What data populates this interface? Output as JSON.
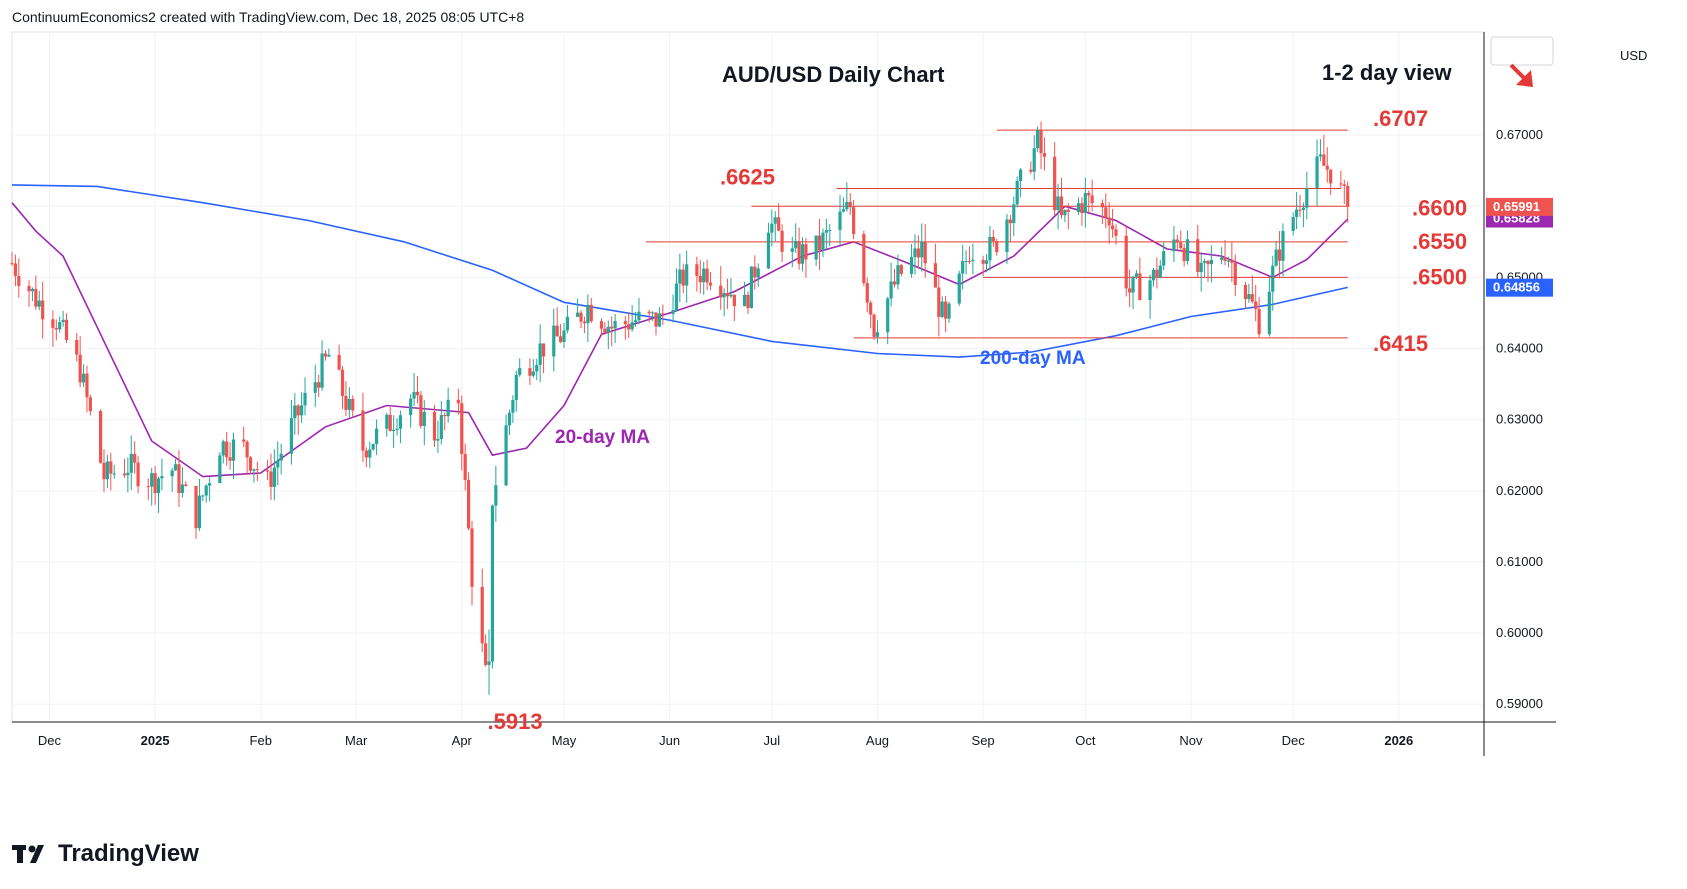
{
  "header": {
    "attribution": "ContinuumEconomics2 created with TradingView.com, Dec 18, 2025 08:05 UTC+8"
  },
  "footer": {
    "brand": "TradingView"
  },
  "colors": {
    "up": "#26a69a",
    "down": "#ef5350",
    "ma20": "#9c27b0",
    "ma200": "#2962ff",
    "level": "#e53935",
    "text": "#131722",
    "grid": "#f0f3fa"
  },
  "chart_data": {
    "type": "candlestick",
    "title": "AUD/USD Daily Chart",
    "subtitle": "1-2 day view",
    "currency": "USD",
    "ylim": [
      0.5875,
      0.6845
    ],
    "y_ticks": [
      0.59,
      0.6,
      0.61,
      0.62,
      0.63,
      0.64,
      0.65,
      0.66,
      0.67
    ],
    "y_tick_labels": [
      "0.59000",
      "0.60000",
      "0.61000",
      "0.62000",
      "0.63000",
      "0.64000",
      "0.65000",
      "0.66000",
      "0.67000"
    ],
    "x_ticks": [
      {
        "date": "2024-12-01",
        "label": "Dec"
      },
      {
        "date": "2025-01-01",
        "label": "2025"
      },
      {
        "date": "2025-02-01",
        "label": "Feb"
      },
      {
        "date": "2025-03-01",
        "label": "Mar"
      },
      {
        "date": "2025-04-01",
        "label": "Apr"
      },
      {
        "date": "2025-05-01",
        "label": "May"
      },
      {
        "date": "2025-06-01",
        "label": "Jun"
      },
      {
        "date": "2025-07-01",
        "label": "Jul"
      },
      {
        "date": "2025-08-01",
        "label": "Aug"
      },
      {
        "date": "2025-09-01",
        "label": "Sep"
      },
      {
        "date": "2025-10-01",
        "label": "Oct"
      },
      {
        "date": "2025-11-01",
        "label": "Nov"
      },
      {
        "date": "2025-12-01",
        "label": "Dec"
      },
      {
        "date": "2026-01-01",
        "label": "2026"
      }
    ],
    "x_range": [
      "2024-11-20",
      "2026-01-26"
    ],
    "price_path": [
      [
        "2024-11-20",
        0.652
      ],
      [
        "2024-11-27",
        0.647
      ],
      [
        "2024-12-03",
        0.644
      ],
      [
        "2024-12-10",
        0.637
      ],
      [
        "2024-12-17",
        0.622
      ],
      [
        "2024-12-24",
        0.6235
      ],
      [
        "2024-12-31",
        0.6215
      ],
      [
        "2025-01-06",
        0.623
      ],
      [
        "2025-01-13",
        0.6165
      ],
      [
        "2025-01-20",
        0.6265
      ],
      [
        "2025-01-27",
        0.626
      ],
      [
        "2025-02-03",
        0.621
      ],
      [
        "2025-02-10",
        0.629
      ],
      [
        "2025-02-17",
        0.6355
      ],
      [
        "2025-02-21",
        0.639
      ],
      [
        "2025-03-03",
        0.626
      ],
      [
        "2025-03-10",
        0.629
      ],
      [
        "2025-03-17",
        0.633
      ],
      [
        "2025-03-24",
        0.628
      ],
      [
        "2025-03-31",
        0.633
      ],
      [
        "2025-04-04",
        0.608
      ],
      [
        "2025-04-08",
        0.594
      ],
      [
        "2025-04-10",
        0.619
      ],
      [
        "2025-04-17",
        0.636
      ],
      [
        "2025-04-24",
        0.64
      ],
      [
        "2025-05-01",
        0.642
      ],
      [
        "2025-05-08",
        0.646
      ],
      [
        "2025-05-15",
        0.643
      ],
      [
        "2025-05-22",
        0.644
      ],
      [
        "2025-05-29",
        0.644
      ],
      [
        "2025-06-05",
        0.65
      ],
      [
        "2025-06-12",
        0.651
      ],
      [
        "2025-06-19",
        0.648
      ],
      [
        "2025-06-23",
        0.646
      ],
      [
        "2025-06-30",
        0.658
      ],
      [
        "2025-07-07",
        0.653
      ],
      [
        "2025-07-14",
        0.654
      ],
      [
        "2025-07-24",
        0.66
      ],
      [
        "2025-07-31",
        0.643
      ],
      [
        "2025-08-07",
        0.65
      ],
      [
        "2025-08-14",
        0.654
      ],
      [
        "2025-08-21",
        0.643
      ],
      [
        "2025-08-28",
        0.654
      ],
      [
        "2025-09-04",
        0.654
      ],
      [
        "2025-09-11",
        0.662
      ],
      [
        "2025-09-17",
        0.669
      ],
      [
        "2025-09-24",
        0.658
      ],
      [
        "2025-10-01",
        0.661
      ],
      [
        "2025-10-08",
        0.659
      ],
      [
        "2025-10-14",
        0.648
      ],
      [
        "2025-10-21",
        0.65
      ],
      [
        "2025-10-28",
        0.656
      ],
      [
        "2025-11-04",
        0.65
      ],
      [
        "2025-11-11",
        0.654
      ],
      [
        "2025-11-18",
        0.647
      ],
      [
        "2025-11-21",
        0.644
      ],
      [
        "2025-11-27",
        0.654
      ],
      [
        "2025-12-03",
        0.661
      ],
      [
        "2025-12-09",
        0.666
      ],
      [
        "2025-12-12",
        0.665
      ],
      [
        "2025-12-17",
        0.6599
      ]
    ],
    "ma20": {
      "name": "20-day MA",
      "points": [
        [
          "2024-11-20",
          0.6605
        ],
        [
          "2024-11-27",
          0.6565
        ],
        [
          "2024-12-05",
          0.653
        ],
        [
          "2024-12-15",
          0.643
        ],
        [
          "2024-12-31",
          0.627
        ],
        [
          "2025-01-15",
          0.622
        ],
        [
          "2025-02-01",
          0.6225
        ],
        [
          "2025-02-20",
          0.629
        ],
        [
          "2025-03-10",
          0.632
        ],
        [
          "2025-04-03",
          0.631
        ],
        [
          "2025-04-10",
          0.625
        ],
        [
          "2025-04-20",
          0.626
        ],
        [
          "2025-05-01",
          0.632
        ],
        [
          "2025-05-12",
          0.642
        ],
        [
          "2025-06-01",
          0.645
        ],
        [
          "2025-06-20",
          0.648
        ],
        [
          "2025-07-10",
          0.653
        ],
        [
          "2025-07-25",
          0.655
        ],
        [
          "2025-08-10",
          0.652
        ],
        [
          "2025-08-25",
          0.649
        ],
        [
          "2025-09-10",
          0.653
        ],
        [
          "2025-09-25",
          0.66
        ],
        [
          "2025-10-10",
          0.658
        ],
        [
          "2025-10-25",
          0.654
        ],
        [
          "2025-11-10",
          0.653
        ],
        [
          "2025-11-25",
          0.65
        ],
        [
          "2025-12-05",
          0.6525
        ],
        [
          "2025-12-17",
          0.6582
        ]
      ]
    },
    "ma200": {
      "name": "200-day MA",
      "points": [
        [
          "2024-11-20",
          0.663
        ],
        [
          "2024-12-15",
          0.6628
        ],
        [
          "2025-01-15",
          0.6605
        ],
        [
          "2025-02-15",
          0.658
        ],
        [
          "2025-03-15",
          0.655
        ],
        [
          "2025-04-10",
          0.651
        ],
        [
          "2025-05-01",
          0.6465
        ],
        [
          "2025-06-01",
          0.644
        ],
        [
          "2025-07-01",
          0.641
        ],
        [
          "2025-08-01",
          0.6393
        ],
        [
          "2025-08-25",
          0.6388
        ],
        [
          "2025-09-15",
          0.6395
        ],
        [
          "2025-10-10",
          0.6418
        ],
        [
          "2025-11-01",
          0.6445
        ],
        [
          "2025-11-25",
          0.6462
        ],
        [
          "2025-12-17",
          0.6486
        ]
      ]
    },
    "levels": [
      {
        "label": ".6707",
        "value": 0.6707,
        "from": "2025-09-05",
        "to": "2025-12-17"
      },
      {
        "label": ".6625",
        "value": 0.6625,
        "from": "2025-07-20",
        "to": "2025-12-15"
      },
      {
        "label": ".6600",
        "value": 0.66,
        "from": "2025-06-25",
        "to": "2025-12-17"
      },
      {
        "label": ".6550",
        "value": 0.655,
        "from": "2025-05-25",
        "to": "2025-12-17"
      },
      {
        "label": ".6500",
        "value": 0.65,
        "from": "2025-09-01",
        "to": "2025-12-17"
      },
      {
        "label": ".6415",
        "value": 0.6415,
        "from": "2025-07-25",
        "to": "2025-12-17"
      }
    ],
    "low_label": {
      "label": ".5913",
      "value": 0.5913,
      "date": "2025-04-09"
    },
    "annotations": [
      {
        "text": "20-day MA"
      },
      {
        "text": "200-day MA"
      }
    ],
    "last_price": {
      "label": "0.65991",
      "value": 0.65991
    },
    "ma20_value": {
      "label": "0.65828",
      "value": 0.65828
    },
    "ma200_value": {
      "label": "0.64856",
      "value": 0.64856
    },
    "grid": true
  }
}
